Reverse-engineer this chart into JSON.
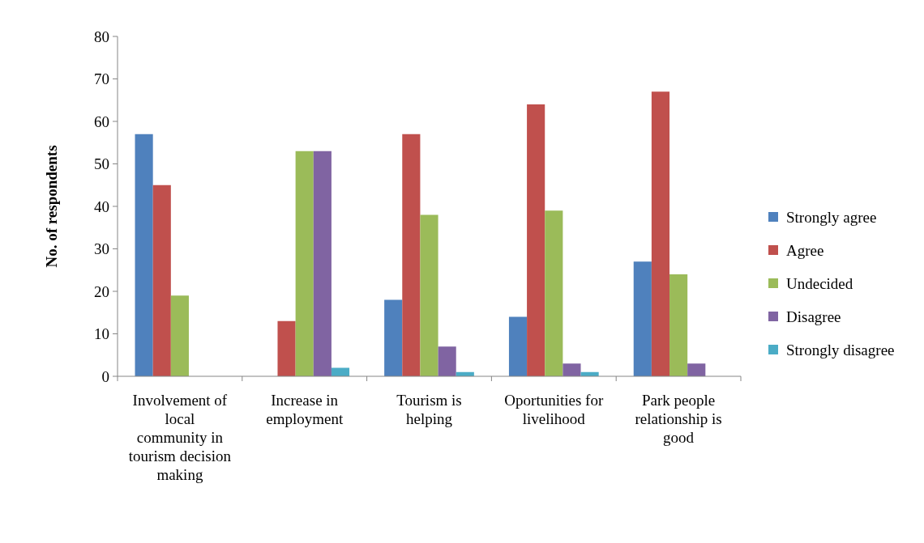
{
  "chart_data": {
    "type": "bar",
    "ylabel": "No. of respondents",
    "categories": [
      "Involvement of local community in tourism decision making",
      "Increase in employment",
      "Tourism is helping",
      "Oportunities for livelihood",
      "Park people relationship is good"
    ],
    "series": [
      {
        "name": "Strongly agree",
        "color": "#4f81bd",
        "values": [
          57,
          0,
          18,
          14,
          27
        ]
      },
      {
        "name": "Agree",
        "color": "#c0504d",
        "values": [
          45,
          13,
          57,
          64,
          67
        ]
      },
      {
        "name": "Undecided",
        "color": "#9bbb59",
        "values": [
          19,
          53,
          38,
          39,
          24
        ]
      },
      {
        "name": "Disagree",
        "color": "#8064a2",
        "values": [
          0,
          53,
          7,
          3,
          3
        ]
      },
      {
        "name": "Strongly disagree",
        "color": "#4bacc6",
        "values": [
          0,
          2,
          1,
          1,
          0
        ]
      }
    ],
    "ylim": [
      0,
      80
    ],
    "yticks": [
      0,
      10,
      20,
      30,
      40,
      50,
      60,
      70,
      80
    ],
    "grid": false,
    "legend": "right"
  }
}
